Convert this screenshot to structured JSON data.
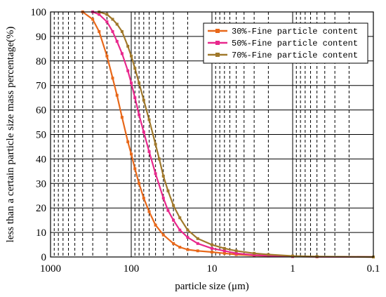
{
  "chart_data": {
    "type": "line",
    "xlabel": "particle size (μm)",
    "ylabel": "less than a certain particle size mass percentage(%)",
    "x_scale": "log",
    "x_direction": "reversed",
    "xlim": [
      1000,
      0.1
    ],
    "ylim": [
      0,
      100
    ],
    "x_ticks": [
      1000,
      100,
      10,
      1,
      0.1
    ],
    "x_tick_labels": [
      "1000",
      "100",
      "10",
      "1",
      "0.1"
    ],
    "y_ticks": [
      0,
      10,
      20,
      30,
      40,
      50,
      60,
      70,
      80,
      90,
      100
    ],
    "y_tick_labels": [
      "0",
      "10",
      "20",
      "30",
      "40",
      "50",
      "60",
      "70",
      "80",
      "90",
      "100"
    ],
    "grid": "on (major solid, minor dashed)",
    "legend_position": "top-right",
    "series": [
      {
        "name": "30%-Fine particle content",
        "color": "#e8681a",
        "marker": "square",
        "points": [
          [
            400,
            100
          ],
          [
            300,
            97
          ],
          [
            250,
            92
          ],
          [
            200,
            82
          ],
          [
            170,
            73
          ],
          [
            150,
            66
          ],
          [
            130,
            57
          ],
          [
            110,
            47
          ],
          [
            100,
            42
          ],
          [
            90,
            36
          ],
          [
            80,
            30
          ],
          [
            70,
            24
          ],
          [
            60,
            18.5
          ],
          [
            50,
            13
          ],
          [
            40,
            9
          ],
          [
            30,
            5.5
          ],
          [
            25,
            4
          ],
          [
            20,
            3
          ],
          [
            15,
            2.5
          ],
          [
            10,
            2
          ],
          [
            7,
            1.5
          ],
          [
            5,
            1
          ],
          [
            3,
            0.6
          ],
          [
            2,
            0.4
          ],
          [
            1,
            0.2
          ],
          [
            0.5,
            0.1
          ],
          [
            0.1,
            0
          ]
        ]
      },
      {
        "name": "50%-Fine particle content",
        "color": "#e8288c",
        "marker": "square",
        "points": [
          [
            300,
            100
          ],
          [
            250,
            99
          ],
          [
            200,
            96
          ],
          [
            170,
            92
          ],
          [
            150,
            88
          ],
          [
            130,
            83
          ],
          [
            110,
            76
          ],
          [
            100,
            71
          ],
          [
            90,
            65
          ],
          [
            80,
            58
          ],
          [
            70,
            51
          ],
          [
            60,
            43
          ],
          [
            50,
            34
          ],
          [
            40,
            24
          ],
          [
            35,
            19
          ],
          [
            30,
            15
          ],
          [
            25,
            11
          ],
          [
            20,
            8
          ],
          [
            15,
            5.5
          ],
          [
            10,
            3.5
          ],
          [
            7,
            2.5
          ],
          [
            5,
            1.5
          ],
          [
            3,
            0.8
          ],
          [
            2,
            0.5
          ],
          [
            1,
            0.2
          ],
          [
            0.5,
            0.1
          ],
          [
            0.1,
            0
          ]
        ]
      },
      {
        "name": "70%-Fine particle content",
        "color": "#a0782a",
        "marker": "square",
        "points": [
          [
            250,
            100
          ],
          [
            200,
            99
          ],
          [
            170,
            97
          ],
          [
            150,
            95
          ],
          [
            130,
            92
          ],
          [
            110,
            86
          ],
          [
            100,
            82
          ],
          [
            90,
            77
          ],
          [
            80,
            71
          ],
          [
            70,
            64
          ],
          [
            60,
            56
          ],
          [
            50,
            46
          ],
          [
            45,
            40
          ],
          [
            40,
            33
          ],
          [
            35,
            27
          ],
          [
            30,
            21
          ],
          [
            25,
            16
          ],
          [
            20,
            11
          ],
          [
            15,
            7.5
          ],
          [
            10,
            5
          ],
          [
            7,
            3.5
          ],
          [
            5,
            2.5
          ],
          [
            3,
            1.5
          ],
          [
            2,
            1
          ],
          [
            1,
            0.4
          ],
          [
            0.5,
            0.2
          ],
          [
            0.1,
            0
          ]
        ]
      }
    ]
  }
}
